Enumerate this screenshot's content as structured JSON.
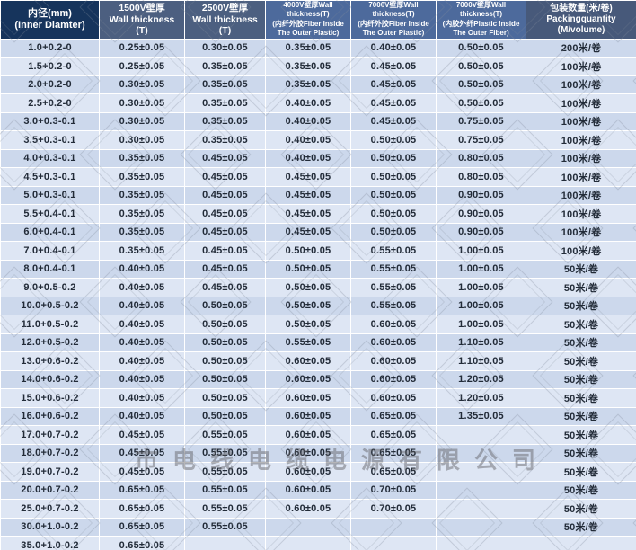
{
  "colors": {
    "header_dark_navy": "#16345c",
    "header_slate": "#4c5f80",
    "header_steel_blue": "#4d6a9c",
    "header_packing": "#47597a",
    "row_dark": "#ccd8ec",
    "row_light": "#dee6f4",
    "cell_text": "#222b38",
    "border": "#ffffff"
  },
  "watermark": {
    "company_text": "市电线电缆电源有限公司"
  },
  "chart_data": {
    "type": "table",
    "title": "",
    "columns": [
      {
        "id": "inner_diameter",
        "label": "内径(mm)\n(Inner Diamter)"
      },
      {
        "id": "wall_1500v",
        "label": "1500V壁厚\nWall thickness\n(T)"
      },
      {
        "id": "wall_2500v",
        "label": "2500V壁厚\nWall thickness\n(T)"
      },
      {
        "id": "wall_4000v_fiber_inside",
        "label": "4000V壁厚Wall thickness(T)\n(内纤外胶Fiber Inside\nThe Outer Plastic)"
      },
      {
        "id": "wall_7000v_fiber_inside",
        "label": "7000V壁厚Wall thickness(T)\n(内纤外胶Fiber Inside\nThe Outer Plastic)"
      },
      {
        "id": "wall_7000v_plastic_inside",
        "label": "7000V壁厚Wall thickness(T)\n(内胶外纤Plastic Inside\nThe Outer Fiber)"
      },
      {
        "id": "packing_quantity",
        "label": "包装数量(米/卷)\nPackingquantity\n(M/volume)"
      }
    ],
    "rows": [
      [
        "1.0+0.2-0",
        "0.25±0.05",
        "0.30±0.05",
        "0.35±0.05",
        "0.40±0.05",
        "0.50±0.05",
        "200米/卷"
      ],
      [
        "1.5+0.2-0",
        "0.25±0.05",
        "0.35±0.05",
        "0.35±0.05",
        "0.45±0.05",
        "0.50±0.05",
        "100米/卷"
      ],
      [
        "2.0+0.2-0",
        "0.30±0.05",
        "0.35±0.05",
        "0.35±0.05",
        "0.45±0.05",
        "0.50±0.05",
        "100米/卷"
      ],
      [
        "2.5+0.2-0",
        "0.30±0.05",
        "0.35±0.05",
        "0.40±0.05",
        "0.45±0.05",
        "0.50±0.05",
        "100米/卷"
      ],
      [
        "3.0+0.3-0.1",
        "0.30±0.05",
        "0.35±0.05",
        "0.40±0.05",
        "0.45±0.05",
        "0.75±0.05",
        "100米/卷"
      ],
      [
        "3.5+0.3-0.1",
        "0.30±0.05",
        "0.35±0.05",
        "0.40±0.05",
        "0.50±0.05",
        "0.75±0.05",
        "100米/卷"
      ],
      [
        "4.0+0.3-0.1",
        "0.35±0.05",
        "0.45±0.05",
        "0.40±0.05",
        "0.50±0.05",
        "0.80±0.05",
        "100米/卷"
      ],
      [
        "4.5+0.3-0.1",
        "0.35±0.05",
        "0.45±0.05",
        "0.45±0.05",
        "0.50±0.05",
        "0.80±0.05",
        "100米/卷"
      ],
      [
        "5.0+0.3-0.1",
        "0.35±0.05",
        "0.45±0.05",
        "0.45±0.05",
        "0.50±0.05",
        "0.90±0.05",
        "100米/卷"
      ],
      [
        "5.5+0.4-0.1",
        "0.35±0.05",
        "0.45±0.05",
        "0.45±0.05",
        "0.50±0.05",
        "0.90±0.05",
        "100米/卷"
      ],
      [
        "6.0+0.4-0.1",
        "0.35±0.05",
        "0.45±0.05",
        "0.45±0.05",
        "0.50±0.05",
        "0.90±0.05",
        "100米/卷"
      ],
      [
        "7.0+0.4-0.1",
        "0.35±0.05",
        "0.45±0.05",
        "0.50±0.05",
        "0.55±0.05",
        "1.00±0.05",
        "100米/卷"
      ],
      [
        "8.0+0.4-0.1",
        "0.40±0.05",
        "0.45±0.05",
        "0.50±0.05",
        "0.55±0.05",
        "1.00±0.05",
        "50米/卷"
      ],
      [
        "9.0+0.5-0.2",
        "0.40±0.05",
        "0.45±0.05",
        "0.50±0.05",
        "0.55±0.05",
        "1.00±0.05",
        "50米/卷"
      ],
      [
        "10.0+0.5-0.2",
        "0.40±0.05",
        "0.50±0.05",
        "0.50±0.05",
        "0.55±0.05",
        "1.00±0.05",
        "50米/卷"
      ],
      [
        "11.0+0.5-0.2",
        "0.40±0.05",
        "0.50±0.05",
        "0.50±0.05",
        "0.60±0.05",
        "1.00±0.05",
        "50米/卷"
      ],
      [
        "12.0+0.5-0.2",
        "0.40±0.05",
        "0.50±0.05",
        "0.55±0.05",
        "0.60±0.05",
        "1.10±0.05",
        "50米/卷"
      ],
      [
        "13.0+0.6-0.2",
        "0.40±0.05",
        "0.50±0.05",
        "0.60±0.05",
        "0.60±0.05",
        "1.10±0.05",
        "50米/卷"
      ],
      [
        "14.0+0.6-0.2",
        "0.40±0.05",
        "0.50±0.05",
        "0.60±0.05",
        "0.60±0.05",
        "1.20±0.05",
        "50米/卷"
      ],
      [
        "15.0+0.6-0.2",
        "0.40±0.05",
        "0.50±0.05",
        "0.60±0.05",
        "0.60±0.05",
        "1.20±0.05",
        "50米/卷"
      ],
      [
        "16.0+0.6-0.2",
        "0.40±0.05",
        "0.50±0.05",
        "0.60±0.05",
        "0.65±0.05",
        "1.35±0.05",
        "50米/卷"
      ],
      [
        "17.0+0.7-0.2",
        "0.45±0.05",
        "0.55±0.05",
        "0.60±0.05",
        "0.65±0.05",
        "",
        "50米/卷"
      ],
      [
        "18.0+0.7-0.2",
        "0.45±0.05",
        "0.55±0.05",
        "0.60±0.05",
        "0.65±0.05",
        "",
        "50米/卷"
      ],
      [
        "19.0+0.7-0.2",
        "0.45±0.05",
        "0.55±0.05",
        "0.60±0.05",
        "0.65±0.05",
        "",
        "50米/卷"
      ],
      [
        "20.0+0.7-0.2",
        "0.65±0.05",
        "0.55±0.05",
        "0.60±0.05",
        "0.70±0.05",
        "",
        "50米/卷"
      ],
      [
        "25.0+0.7-0.2",
        "0.65±0.05",
        "0.55±0.05",
        "0.60±0.05",
        "0.70±0.05",
        "",
        "50米/卷"
      ],
      [
        "30.0+1.0-0.2",
        "0.65±0.05",
        "0.55±0.05",
        "",
        "",
        "",
        "50米/卷"
      ],
      [
        "35.0+1.0-0.2",
        "0.65±0.05",
        "",
        "",
        "",
        "",
        ""
      ]
    ]
  }
}
